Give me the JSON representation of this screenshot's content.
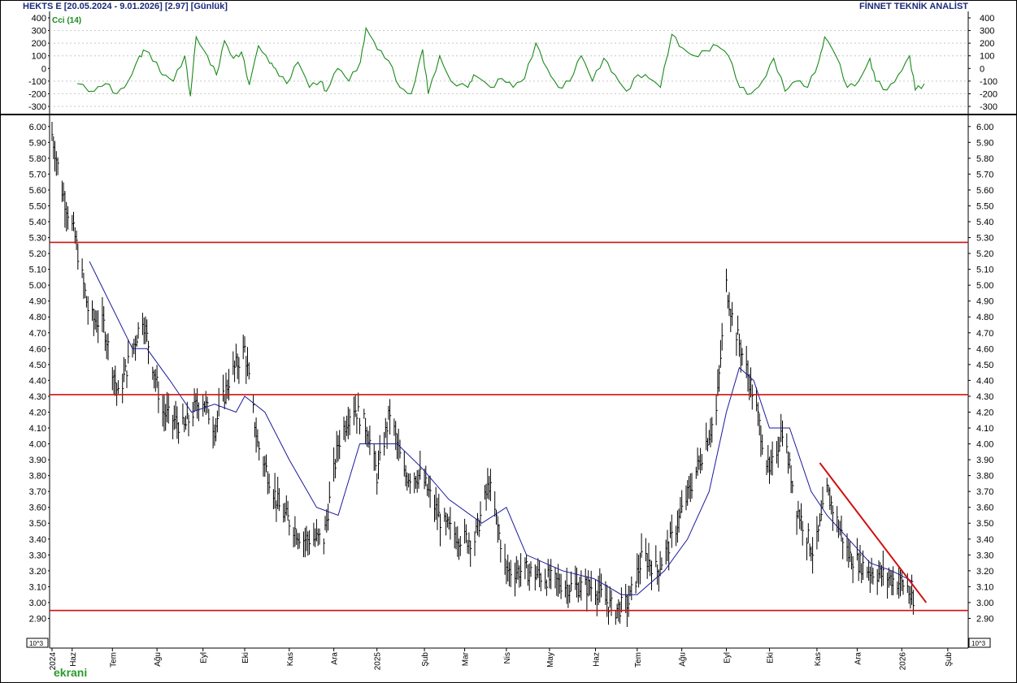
{
  "header": {
    "left": "HEKTS E  [20.05.2024 - 9.01.2026]  [2.97]  [Günlük]",
    "right": "FİNNET TEKNİK ANALİST"
  },
  "indicator_label": "Cci (14)",
  "logo_text": "ekrani",
  "colors": {
    "price_bars": "#000000",
    "moving_average": "#1a1a9a",
    "support_resistance": "#d01010",
    "cci_line": "#1a8a1a",
    "header_text": "#1b2a7a"
  },
  "chart_data": [
    {
      "type": "line",
      "name_label": "Cci (14)",
      "ylim": [
        -300,
        400
      ],
      "yticks": [
        400,
        300,
        200,
        100,
        0,
        -100,
        -200,
        -300
      ],
      "grid": true,
      "points": [
        [
          0.0,
          -120
        ],
        [
          1.5,
          -180
        ],
        [
          2.5,
          -120
        ],
        [
          3.5,
          -200
        ],
        [
          4.5,
          -100
        ],
        [
          5.5,
          100
        ],
        [
          6.0,
          140
        ],
        [
          7.0,
          50
        ],
        [
          7.5,
          -50
        ],
        [
          8.5,
          -100
        ],
        [
          9.5,
          100
        ],
        [
          10.0,
          -220
        ],
        [
          10.5,
          250
        ],
        [
          11.5,
          100
        ],
        [
          12.3,
          -50
        ],
        [
          13.0,
          220
        ],
        [
          13.8,
          80
        ],
        [
          14.5,
          130
        ],
        [
          15.2,
          -130
        ],
        [
          16.0,
          180
        ],
        [
          17.0,
          40
        ],
        [
          17.5,
          0
        ],
        [
          18.5,
          -120
        ],
        [
          19.5,
          50
        ],
        [
          20.5,
          -150
        ],
        [
          21.5,
          -100
        ],
        [
          22.0,
          -180
        ],
        [
          23.0,
          0
        ],
        [
          24.0,
          -100
        ],
        [
          25.0,
          50
        ],
        [
          25.5,
          320
        ],
        [
          26.5,
          150
        ],
        [
          27.5,
          60
        ],
        [
          28.5,
          -150
        ],
        [
          29.5,
          -200
        ],
        [
          30.5,
          150
        ],
        [
          31.0,
          -200
        ],
        [
          32.0,
          100
        ],
        [
          33.0,
          -100
        ],
        [
          34.5,
          -150
        ],
        [
          35.0,
          -50
        ],
        [
          36.5,
          -150
        ],
        [
          37.5,
          -80
        ],
        [
          38.5,
          -150
        ],
        [
          39.5,
          -80
        ],
        [
          40.5,
          200
        ],
        [
          41.5,
          0
        ],
        [
          42.5,
          -150
        ],
        [
          43.5,
          -100
        ],
        [
          44.5,
          100
        ],
        [
          45.5,
          -100
        ],
        [
          46.5,
          80
        ],
        [
          47.5,
          -50
        ],
        [
          48.5,
          -180
        ],
        [
          49.5,
          -50
        ],
        [
          50.5,
          -80
        ],
        [
          51.5,
          -150
        ],
        [
          52.5,
          270
        ],
        [
          53.5,
          160
        ],
        [
          54.5,
          100
        ],
        [
          55.5,
          140
        ],
        [
          56.5,
          180
        ],
        [
          57.5,
          100
        ],
        [
          58.5,
          -150
        ],
        [
          59.5,
          -200
        ],
        [
          60.5,
          -100
        ],
        [
          61.5,
          80
        ],
        [
          62.5,
          -180
        ],
        [
          63.5,
          -100
        ],
        [
          64.5,
          -150
        ],
        [
          65.5,
          60
        ],
        [
          66.0,
          250
        ],
        [
          67.0,
          100
        ],
        [
          68.0,
          -150
        ],
        [
          69.0,
          -100
        ],
        [
          70.0,
          80
        ],
        [
          70.5,
          -100
        ],
        [
          71.5,
          -170
        ],
        [
          72.5,
          -50
        ],
        [
          73.5,
          100
        ],
        [
          74.0,
          -170
        ],
        [
          74.8,
          -120
        ]
      ]
    },
    {
      "type": "bar",
      "subtype": "ohlc-line",
      "ylim": [
        2.8,
        6.05
      ],
      "yticks": [
        "6.00",
        "5.90",
        "5.80",
        "5.70",
        "5.60",
        "5.50",
        "5.40",
        "5.30",
        "5.20",
        "5.10",
        "5.00",
        "4.90",
        "4.80",
        "4.70",
        "4.60",
        "4.50",
        "4.40",
        "4.30",
        "4.20",
        "4.10",
        "4.00",
        "3.90",
        "3.80",
        "3.70",
        "3.60",
        "3.50",
        "3.40",
        "3.30",
        "3.20",
        "3.10",
        "3.00",
        "2.90"
      ],
      "x_axis_tick_labels": [
        "2024",
        "Haz",
        "Tem",
        "Ağu",
        "Eyl",
        "Eki",
        "Kas",
        "Ara",
        "2025",
        "Şub",
        "Mar",
        "Nis",
        "May",
        "Haz",
        "Tem",
        "Ağu",
        "Eyl",
        "Eki",
        "Kas",
        "Ara",
        "2026",
        "Şub"
      ],
      "scale_labels": [
        "10^3",
        "10^3"
      ],
      "x_range": [
        "2024-05-20",
        "2026-02-10"
      ],
      "price_path": [
        [
          "2024-05-20",
          5.95
        ],
        [
          "2024-05-27",
          5.6
        ],
        [
          "2024-06-05",
          5.3
        ],
        [
          "2024-06-15",
          4.8
        ],
        [
          "2024-06-25",
          4.75
        ],
        [
          "2024-07-05",
          4.3
        ],
        [
          "2024-07-15",
          4.6
        ],
        [
          "2024-07-22",
          4.8
        ],
        [
          "2024-08-05",
          4.2
        ],
        [
          "2024-08-20",
          4.1
        ],
        [
          "2024-09-01",
          4.3
        ],
        [
          "2024-09-10",
          4.1
        ],
        [
          "2024-09-20",
          4.4
        ],
        [
          "2024-10-01",
          4.6
        ],
        [
          "2024-10-10",
          4.0
        ],
        [
          "2024-10-25",
          3.6
        ],
        [
          "2024-11-10",
          3.4
        ],
        [
          "2024-11-25",
          3.4
        ],
        [
          "2024-12-05",
          4.0
        ],
        [
          "2024-12-15",
          4.25
        ],
        [
          "2024-12-25",
          4.1
        ],
        [
          "2025-01-01",
          3.8
        ],
        [
          "2025-01-10",
          4.2
        ],
        [
          "2025-01-20",
          3.8
        ],
        [
          "2025-02-01",
          3.8
        ],
        [
          "2025-02-15",
          3.5
        ],
        [
          "2025-03-01",
          3.4
        ],
        [
          "2025-03-10",
          3.4
        ],
        [
          "2025-03-20",
          3.75
        ],
        [
          "2025-04-01",
          3.2
        ],
        [
          "2025-04-15",
          3.2
        ],
        [
          "2025-04-30",
          3.15
        ],
        [
          "2025-05-15",
          3.1
        ],
        [
          "2025-06-01",
          3.1
        ],
        [
          "2025-06-15",
          2.95
        ],
        [
          "2025-06-25",
          3.0
        ],
        [
          "2025-07-05",
          3.3
        ],
        [
          "2025-07-15",
          3.2
        ],
        [
          "2025-07-25",
          3.4
        ],
        [
          "2025-08-10",
          3.8
        ],
        [
          "2025-08-25",
          4.2
        ],
        [
          "2025-09-01",
          5.0
        ],
        [
          "2025-09-05",
          4.8
        ],
        [
          "2025-09-20",
          4.3
        ],
        [
          "2025-10-01",
          3.8
        ],
        [
          "2025-10-10",
          4.1
        ],
        [
          "2025-10-20",
          3.6
        ],
        [
          "2025-11-01",
          3.3
        ],
        [
          "2025-11-10",
          3.7
        ],
        [
          "2025-11-25",
          3.3
        ],
        [
          "2025-12-10",
          3.2
        ],
        [
          "2025-12-25",
          3.15
        ],
        [
          "2026-01-05",
          3.1
        ],
        [
          "2026-01-09",
          2.97
        ]
      ],
      "moving_average_path": [
        [
          "2024-06-15",
          5.15
        ],
        [
          "2024-07-15",
          4.6
        ],
        [
          "2024-07-25",
          4.6
        ],
        [
          "2024-08-10",
          4.4
        ],
        [
          "2024-08-25",
          4.2
        ],
        [
          "2024-09-10",
          4.25
        ],
        [
          "2024-09-25",
          4.2
        ],
        [
          "2024-10-01",
          4.3
        ],
        [
          "2024-10-15",
          4.2
        ],
        [
          "2024-11-01",
          3.9
        ],
        [
          "2024-11-20",
          3.6
        ],
        [
          "2024-12-05",
          3.55
        ],
        [
          "2024-12-20",
          4.0
        ],
        [
          "2025-01-01",
          4.0
        ],
        [
          "2025-01-15",
          4.0
        ],
        [
          "2025-02-01",
          3.85
        ],
        [
          "2025-02-20",
          3.65
        ],
        [
          "2025-03-15",
          3.5
        ],
        [
          "2025-04-01",
          3.6
        ],
        [
          "2025-04-15",
          3.3
        ],
        [
          "2025-05-10",
          3.2
        ],
        [
          "2025-06-01",
          3.15
        ],
        [
          "2025-06-20",
          3.05
        ],
        [
          "2025-07-01",
          3.05
        ],
        [
          "2025-07-20",
          3.2
        ],
        [
          "2025-08-05",
          3.4
        ],
        [
          "2025-08-20",
          3.7
        ],
        [
          "2025-09-01",
          4.2
        ],
        [
          "2025-09-10",
          4.48
        ],
        [
          "2025-09-20",
          4.4
        ],
        [
          "2025-10-01",
          4.1
        ],
        [
          "2025-10-15",
          4.1
        ],
        [
          "2025-10-30",
          3.7
        ],
        [
          "2025-11-10",
          3.55
        ],
        [
          "2025-11-25",
          3.4
        ],
        [
          "2025-12-10",
          3.25
        ],
        [
          "2025-12-25",
          3.2
        ],
        [
          "2026-01-05",
          3.15
        ],
        [
          "2026-01-09",
          3.13
        ]
      ],
      "horizontal_levels": [
        5.27,
        4.31,
        2.95
      ],
      "trendline": [
        [
          "2025-11-05",
          3.88
        ],
        [
          "2026-01-18",
          3.0
        ]
      ]
    }
  ]
}
